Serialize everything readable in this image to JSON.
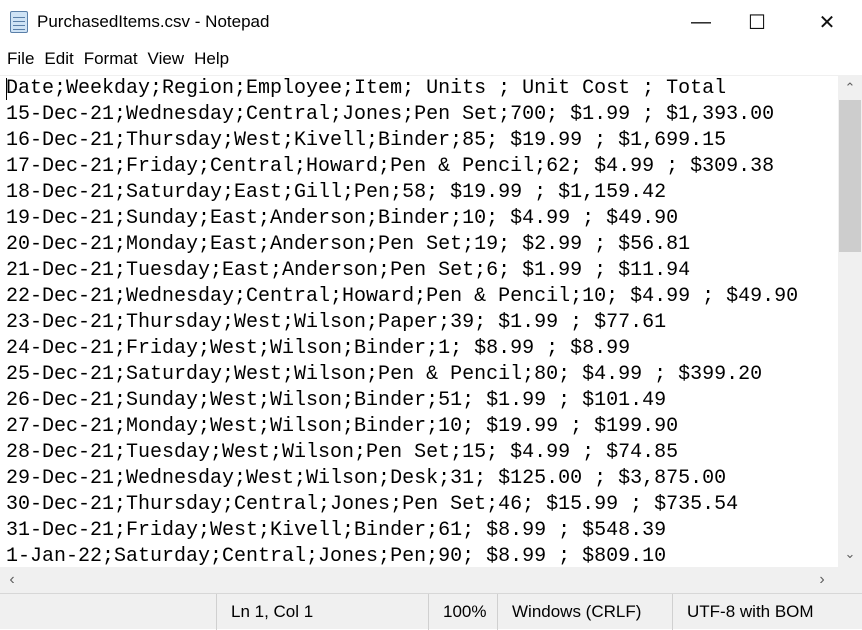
{
  "window": {
    "title": "PurchasedItems.csv - Notepad",
    "minimize": "—",
    "maximize": "☐",
    "close": "✕"
  },
  "menu": [
    "File",
    "Edit",
    "Format",
    "View",
    "Help"
  ],
  "lines": [
    "Date;Weekday;Region;Employee;Item; Units ; Unit Cost ; Total",
    "15-Dec-21;Wednesday;Central;Jones;Pen Set;700; $1.99 ; $1,393.00",
    "16-Dec-21;Thursday;West;Kivell;Binder;85; $19.99 ; $1,699.15",
    "17-Dec-21;Friday;Central;Howard;Pen & Pencil;62; $4.99 ; $309.38",
    "18-Dec-21;Saturday;East;Gill;Pen;58; $19.99 ; $1,159.42",
    "19-Dec-21;Sunday;East;Anderson;Binder;10; $4.99 ; $49.90",
    "20-Dec-21;Monday;East;Anderson;Pen Set;19; $2.99 ; $56.81",
    "21-Dec-21;Tuesday;East;Anderson;Pen Set;6; $1.99 ; $11.94",
    "22-Dec-21;Wednesday;Central;Howard;Pen & Pencil;10; $4.99 ; $49.90",
    "23-Dec-21;Thursday;West;Wilson;Paper;39; $1.99 ; $77.61",
    "24-Dec-21;Friday;West;Wilson;Binder;1; $8.99 ; $8.99",
    "25-Dec-21;Saturday;West;Wilson;Pen & Pencil;80; $4.99 ; $399.20",
    "26-Dec-21;Sunday;West;Wilson;Binder;51; $1.99 ; $101.49",
    "27-Dec-21;Monday;West;Wilson;Binder;10; $19.99 ; $199.90",
    "28-Dec-21;Tuesday;West;Wilson;Pen Set;15; $4.99 ; $74.85",
    "29-Dec-21;Wednesday;West;Wilson;Desk;31; $125.00 ; $3,875.00",
    "30-Dec-21;Thursday;Central;Jones;Pen Set;46; $15.99 ; $735.54",
    "31-Dec-21;Friday;West;Kivell;Binder;61; $8.99 ; $548.39",
    "1-Jan-22;Saturday;Central;Jones;Pen;90; $8.99 ; $809.10"
  ],
  "status": {
    "position": "Ln 1, Col 1",
    "zoom": "100%",
    "line_ending": "Windows (CRLF)",
    "encoding": "UTF-8 with BOM"
  }
}
